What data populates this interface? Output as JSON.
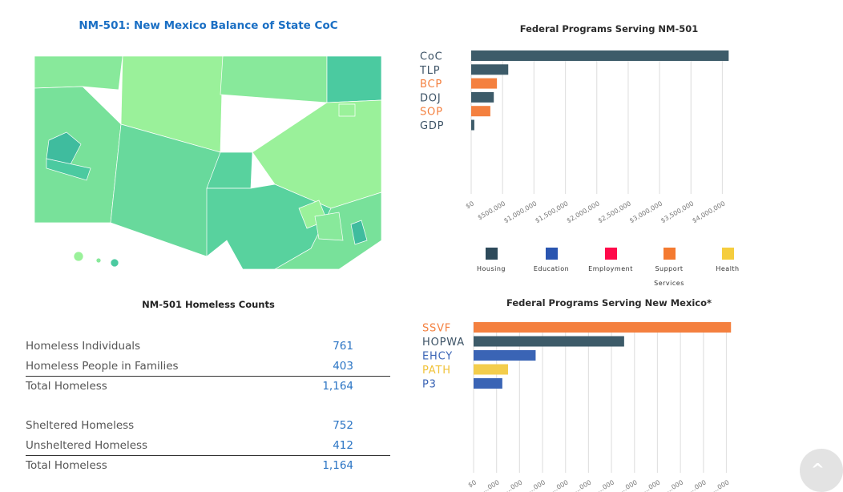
{
  "map": {
    "title": "NM-501: New Mexico Balance of State CoC",
    "palette": [
      "#9af19a",
      "#88e99b",
      "#78e19a",
      "#68d99c",
      "#58d29e",
      "#4bcaa0",
      "#3fbc9e"
    ]
  },
  "counts": {
    "title": "NM-501 Homeless Counts",
    "group1": [
      {
        "label": "Homeless Individuals",
        "value": "761"
      },
      {
        "label": "Homeless People in Families",
        "value": "403"
      }
    ],
    "total1": {
      "label": "Total Homeless",
      "value": "1,164"
    },
    "group2": [
      {
        "label": "Sheltered Homeless",
        "value": "752"
      },
      {
        "label": "Unsheltered Homeless",
        "value": "412"
      }
    ],
    "total2": {
      "label": "Total Homeless",
      "value": "1,164"
    }
  },
  "legend": [
    {
      "label": "Housing",
      "color": "#2d4a5a"
    },
    {
      "label": "Education",
      "color": "#2a55b0"
    },
    {
      "label": "Employment",
      "color": "#ff0a4a"
    },
    {
      "label": "Support Services",
      "color": "#f47a30"
    },
    {
      "label": "Health",
      "color": "#f5cd3e"
    }
  ],
  "chart_data": [
    {
      "type": "bar",
      "orientation": "horizontal",
      "title": "Federal Programs Serving NM-501",
      "categories": [
        "CoC",
        "TLP",
        "BCP",
        "DOJ",
        "SOP",
        "GDP"
      ],
      "category_groups": [
        "Housing",
        "Housing",
        "Support Services",
        "Housing",
        "Support Services",
        "Housing"
      ],
      "values": [
        4100000,
        590000,
        410000,
        360000,
        305000,
        50000
      ],
      "xlim": [
        0,
        4000000
      ],
      "xticks": [
        "$0",
        "$500,000",
        "$1,000,000",
        "$1,500,000",
        "$2,000,000",
        "$2,500,000",
        "$3,000,000",
        "$3,500,000",
        "$4,000,000"
      ],
      "xlabel": "",
      "ylabel": "",
      "grid": true,
      "legend": "bottom"
    },
    {
      "type": "bar",
      "orientation": "horizontal",
      "title": "Federal Programs Serving New Mexico*",
      "categories": [
        "SSVF",
        "HOPWA",
        "EHCY",
        "PATH",
        "P3"
      ],
      "category_groups": [
        "Support Services",
        "Housing",
        "Education",
        "Health",
        "Education"
      ],
      "values": [
        11.2,
        6.55,
        2.7,
        1.5,
        1.25
      ],
      "value_units": "gridline intervals (tick labels cut off)",
      "xlim": [
        0,
        11
      ],
      "xticks": [
        "$0",
        "…000",
        "…000",
        "…000",
        "…000",
        "…000",
        "…000",
        "…000",
        "…000",
        "…000",
        "…000",
        "…000"
      ],
      "xlabel": "",
      "ylabel": "",
      "grid": true
    }
  ],
  "scroll_top": {
    "icon": "chevron-up-icon",
    "glyph": "^"
  }
}
